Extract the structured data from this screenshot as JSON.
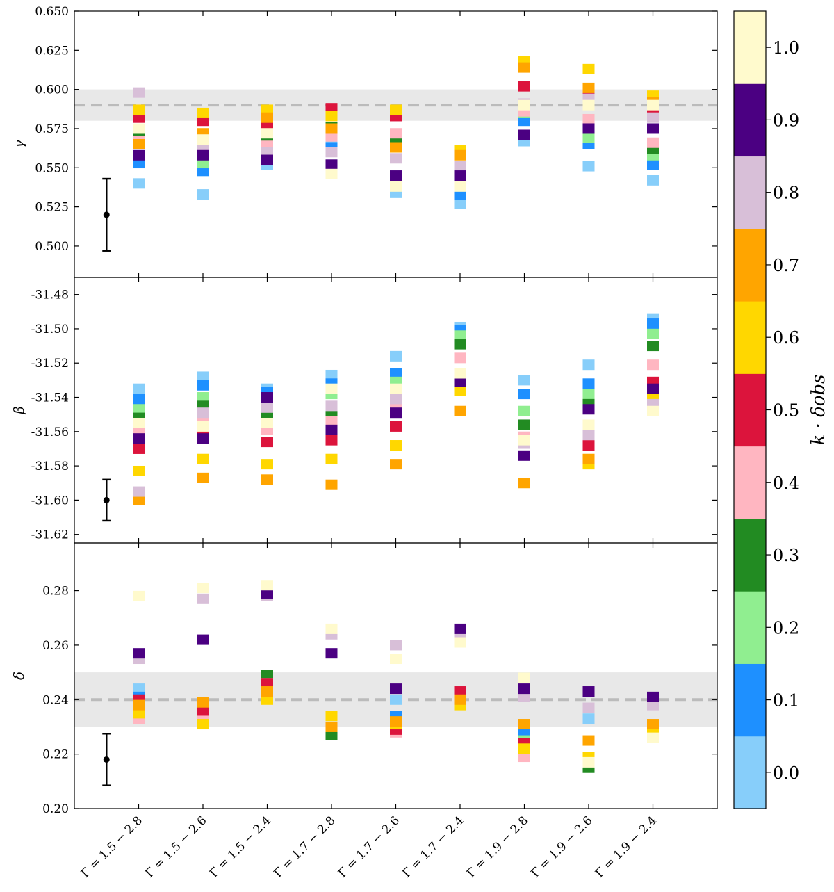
{
  "chart_data": [
    {
      "type": "scatter",
      "panel": "gamma",
      "ylabel": "γ",
      "ylim": [
        0.48,
        0.65
      ],
      "yticks": [
        0.5,
        0.525,
        0.55,
        0.575,
        0.6,
        0.625,
        0.65
      ],
      "yticklabels": [
        "0.500",
        "0.525",
        "0.550",
        "0.575",
        "0.600",
        "0.625",
        "0.650"
      ],
      "reference": {
        "value": 0.59,
        "band": [
          0.58,
          0.6
        ]
      },
      "errorbar": {
        "x": 0.5,
        "y": 0.52,
        "yerr": 0.023
      },
      "columns": [
        {
          "x": 1,
          "values": {
            "0.0": 0.54,
            "0.1": 0.553,
            "0.2": null,
            "0.3": 0.57,
            "0.4": 0.567,
            "0.5": 0.582,
            "0.6": 0.587,
            "0.7": 0.565,
            "0.8": 0.598,
            "0.9": 0.558,
            "1.0": 0.575
          }
        },
        {
          "x": 2,
          "values": {
            "0.0": 0.533,
            "0.1": 0.548,
            "0.2": 0.553,
            "0.3": 0.562,
            "0.4": 0.565,
            "0.5": 0.58,
            "0.6": 0.585,
            "0.7": 0.572,
            "0.8": 0.561,
            "0.9": 0.558,
            "1.0": 0.568
          }
        },
        {
          "x": 3,
          "values": {
            "0.0": 0.552,
            "0.1": 0.559,
            "0.2": 0.563,
            "0.3": 0.566,
            "0.4": 0.564,
            "0.5": 0.577,
            "0.6": 0.587,
            "0.7": 0.582,
            "0.8": 0.56,
            "0.9": 0.555,
            "1.0": 0.572
          }
        },
        {
          "x": 4,
          "values": {
            "0.0": 0.567,
            "0.1": 0.563,
            "0.2": 0.572,
            "0.3": 0.576,
            "0.4": 0.57,
            "0.5": 0.588,
            "0.6": 0.583,
            "0.7": 0.575,
            "0.8": 0.56,
            "0.9": 0.552,
            "1.0": 0.546
          }
        },
        {
          "x": 5,
          "values": {
            "0.0": 0.534,
            "0.1": null,
            "0.2": 0.565,
            "0.3": 0.567,
            "0.4": 0.572,
            "0.5": 0.583,
            "0.6": 0.587,
            "0.7": 0.563,
            "0.8": 0.556,
            "0.9": 0.545,
            "1.0": 0.538
          }
        },
        {
          "x": 6,
          "values": {
            "0.0": 0.527,
            "0.1": 0.533,
            "0.2": null,
            "0.3": null,
            "0.4": null,
            "0.5": null,
            "0.6": 0.561,
            "0.7": 0.558,
            "0.8": 0.551,
            "0.9": 0.545,
            "1.0": 0.538
          }
        },
        {
          "x": 7,
          "values": {
            "0.0": 0.567,
            "0.1": 0.58,
            "0.2": 0.585,
            "0.3": 0.588,
            "0.4": 0.586,
            "0.5": 0.602,
            "0.6": 0.618,
            "0.7": 0.614,
            "0.8": 0.591,
            "0.9": 0.571,
            "1.0": 0.59
          }
        },
        {
          "x": 8,
          "values": {
            "0.0": 0.551,
            "0.1": 0.565,
            "0.2": 0.569,
            "0.3": null,
            "0.4": 0.581,
            "0.5": 0.597,
            "0.6": 0.613,
            "0.7": 0.601,
            "0.8": 0.594,
            "0.9": 0.575,
            "1.0": 0.59
          }
        },
        {
          "x": 9,
          "values": {
            "0.0": 0.542,
            "0.1": 0.552,
            "0.2": 0.558,
            "0.3": 0.562,
            "0.4": 0.566,
            "0.5": 0.585,
            "0.6": 0.596,
            "0.7": 0.592,
            "0.8": 0.582,
            "0.9": 0.575,
            "1.0": 0.59
          }
        }
      ]
    },
    {
      "type": "scatter",
      "panel": "beta",
      "ylabel": "β",
      "ylim": [
        -31.625,
        -31.47
      ],
      "yticks": [
        -31.62,
        -31.6,
        -31.58,
        -31.56,
        -31.54,
        -31.52,
        -31.5,
        -31.48
      ],
      "yticklabels": [
        "-31.62",
        "-31.60",
        "-31.58",
        "-31.56",
        "-31.54",
        "-31.52",
        "-31.50",
        "-31.48"
      ],
      "errorbar": {
        "x": 0.5,
        "y": -31.6,
        "yerr": 0.012
      },
      "columns": [
        {
          "x": 1,
          "values": {
            "0.0": -31.535,
            "0.1": -31.541,
            "0.2": -31.547,
            "0.3": -31.552,
            "0.4": -31.559,
            "0.5": -31.57,
            "0.6": -31.583,
            "0.7": -31.6,
            "0.8": -31.595,
            "0.9": -31.564,
            "1.0": -31.555
          }
        },
        {
          "x": 2,
          "values": {
            "0.0": -31.528,
            "0.1": -31.533,
            "0.2": -31.54,
            "0.3": -31.545,
            "0.4": -31.553,
            "0.5": -31.56,
            "0.6": -31.576,
            "0.7": -31.587,
            "0.8": -31.549,
            "0.9": -31.564,
            "1.0": -31.557
          }
        },
        {
          "x": 3,
          "values": {
            "0.0": -31.535,
            "0.1": -31.537,
            "0.2": -31.544,
            "0.3": -31.549,
            "0.4": -31.559,
            "0.5": -31.566,
            "0.6": -31.579,
            "0.7": -31.588,
            "0.8": -31.546,
            "0.9": -31.54,
            "1.0": -31.555
          }
        },
        {
          "x": 4,
          "values": {
            "0.0": -31.527,
            "0.1": -31.532,
            "0.2": -31.538,
            "0.3": -31.55,
            "0.4": -31.554,
            "0.5": -31.565,
            "0.6": -31.576,
            "0.7": -31.591,
            "0.8": -31.545,
            "0.9": -31.559,
            "1.0": -31.535
          }
        },
        {
          "x": 5,
          "values": {
            "0.0": -31.516,
            "0.1": -31.526,
            "0.2": -31.531,
            "0.3": null,
            "0.4": -31.546,
            "0.5": -31.557,
            "0.6": -31.568,
            "0.7": -31.579,
            "0.8": -31.541,
            "0.9": -31.549,
            "1.0": -31.535
          }
        },
        {
          "x": 6,
          "values": {
            "0.0": -31.499,
            "0.1": -31.501,
            "0.2": -31.504,
            "0.3": -31.509,
            "0.4": -31.517,
            "0.5": null,
            "0.6": -31.536,
            "0.7": -31.548,
            "0.8": -31.53,
            "0.9": -31.531,
            "1.0": -31.526
          }
        },
        {
          "x": 7,
          "values": {
            "0.0": -31.53,
            "0.1": -31.538,
            "0.2": -31.548,
            "0.3": -31.556,
            "0.4": -31.563,
            "0.5": null,
            "0.6": -31.565,
            "0.7": -31.59,
            "0.8": -31.567,
            "0.9": -31.574,
            "1.0": -31.565
          }
        },
        {
          "x": 8,
          "values": {
            "0.0": -31.521,
            "0.1": -31.532,
            "0.2": -31.538,
            "0.3": -31.544,
            "0.4": -31.558,
            "0.5": -31.568,
            "0.6": -31.579,
            "0.7": -31.576,
            "0.8": -31.562,
            "0.9": -31.547,
            "1.0": -31.556
          }
        },
        {
          "x": 9,
          "values": {
            "0.0": -31.494,
            "0.1": -31.497,
            "0.2": -31.503,
            "0.3": -31.51,
            "0.4": -31.521,
            "0.5": -31.531,
            "0.6": -31.541,
            "0.7": null,
            "0.8": -31.544,
            "0.9": -31.535,
            "1.0": -31.548
          }
        }
      ]
    },
    {
      "type": "scatter",
      "panel": "delta",
      "ylabel": "δ",
      "ylim": [
        0.2,
        0.2975
      ],
      "yticks": [
        0.2,
        0.22,
        0.24,
        0.26,
        0.28
      ],
      "yticklabels": [
        "0.20",
        "0.22",
        "0.24",
        "0.26",
        "0.28"
      ],
      "reference": {
        "value": 0.24,
        "band": [
          0.23,
          0.25
        ]
      },
      "errorbar": {
        "x": 0.5,
        "y": 0.218,
        "yerr": 0.0095
      },
      "columns": [
        {
          "x": 1,
          "values": {
            "0.0": 0.244,
            "0.1": 0.241,
            "0.2": null,
            "0.3": null,
            "0.4": 0.233,
            "0.5": 0.24,
            "0.6": 0.235,
            "0.7": 0.238,
            "0.8": 0.255,
            "0.9": 0.257,
            "1.0": 0.278
          }
        },
        {
          "x": 2,
          "values": {
            "0.0": null,
            "0.1": 0.233,
            "0.2": null,
            "0.3": null,
            "0.4": 0.234,
            "0.5": 0.236,
            "0.6": 0.231,
            "0.7": 0.239,
            "0.8": 0.277,
            "0.9": 0.262,
            "1.0": 0.281
          }
        },
        {
          "x": 3,
          "values": {
            "0.0": null,
            "0.1": null,
            "0.2": 0.247,
            "0.3": 0.249,
            "0.4": 0.246,
            "0.5": 0.246,
            "0.6": 0.24,
            "0.7": 0.243,
            "0.8": 0.278,
            "0.9": 0.279,
            "1.0": 0.282
          }
        },
        {
          "x": 4,
          "values": {
            "0.0": null,
            "0.1": null,
            "0.2": null,
            "0.3": 0.227,
            "0.4": null,
            "0.5": null,
            "0.6": 0.234,
            "0.7": 0.23,
            "0.8": 0.264,
            "0.9": 0.257,
            "1.0": 0.266
          }
        },
        {
          "x": 5,
          "values": {
            "0.0": 0.24,
            "0.1": 0.234,
            "0.2": null,
            "0.3": null,
            "0.4": 0.228,
            "0.5": 0.229,
            "0.6": 0.231,
            "0.7": 0.232,
            "0.8": 0.26,
            "0.9": 0.244,
            "1.0": 0.255
          }
        },
        {
          "x": 6,
          "values": {
            "0.0": null,
            "0.1": null,
            "0.2": null,
            "0.3": null,
            "0.4": null,
            "0.5": 0.243,
            "0.6": 0.238,
            "0.7": 0.24,
            "0.8": 0.264,
            "0.9": 0.266,
            "1.0": 0.261
          }
        },
        {
          "x": 7,
          "values": {
            "0.0": 0.227,
            "0.1": 0.228,
            "0.2": 0.225,
            "0.3": 0.224,
            "0.4": 0.219,
            "0.5": 0.224,
            "0.6": 0.222,
            "0.7": 0.231,
            "0.8": 0.241,
            "0.9": 0.244,
            "1.0": 0.248
          }
        },
        {
          "x": 8,
          "values": {
            "0.0": 0.233,
            "0.1": null,
            "0.2": null,
            "0.3": 0.215,
            "0.4": null,
            "0.5": null,
            "0.6": 0.219,
            "0.7": 0.225,
            "0.8": 0.237,
            "0.9": 0.243,
            "1.0": 0.217
          }
        },
        {
          "x": 9,
          "values": {
            "0.0": null,
            "0.1": null,
            "0.2": null,
            "0.3": null,
            "0.4": null,
            "0.5": null,
            "0.6": 0.229,
            "0.7": 0.231,
            "0.8": 0.238,
            "0.9": 0.241,
            "1.0": 0.226
          }
        }
      ]
    }
  ],
  "xticklabels": [
    "Γ = 1.5 − 2.8",
    "Γ = 1.5 − 2.6",
    "Γ = 1.5 − 2.4",
    "Γ = 1.7 − 2.8",
    "Γ = 1.7 − 2.6",
    "Γ = 1.7 − 2.4",
    "Γ = 1.9 − 2.8",
    "Γ = 1.9 − 2.6",
    "Γ = 1.9 − 2.4"
  ],
  "colorbar": {
    "label": "k · δobs",
    "ticks": [
      "0.0",
      "0.1",
      "0.2",
      "0.3",
      "0.4",
      "0.5",
      "0.6",
      "0.7",
      "0.8",
      "0.9",
      "1.0"
    ],
    "keys": [
      "0.0",
      "0.1",
      "0.2",
      "0.3",
      "0.4",
      "0.5",
      "0.6",
      "0.7",
      "0.8",
      "0.9",
      "1.0"
    ],
    "colors": [
      "#87cefa",
      "#1e90ff",
      "#90ee90",
      "#228b22",
      "#ffb6c1",
      "#dc143c",
      "#ffd700",
      "#ffa500",
      "#d8bfd8",
      "#4b0082",
      "#fffacd"
    ]
  },
  "style": {
    "reference_line_color": "#bbbbbb",
    "band_color": "#e8e8e8",
    "errorbar_color": "#000000"
  }
}
